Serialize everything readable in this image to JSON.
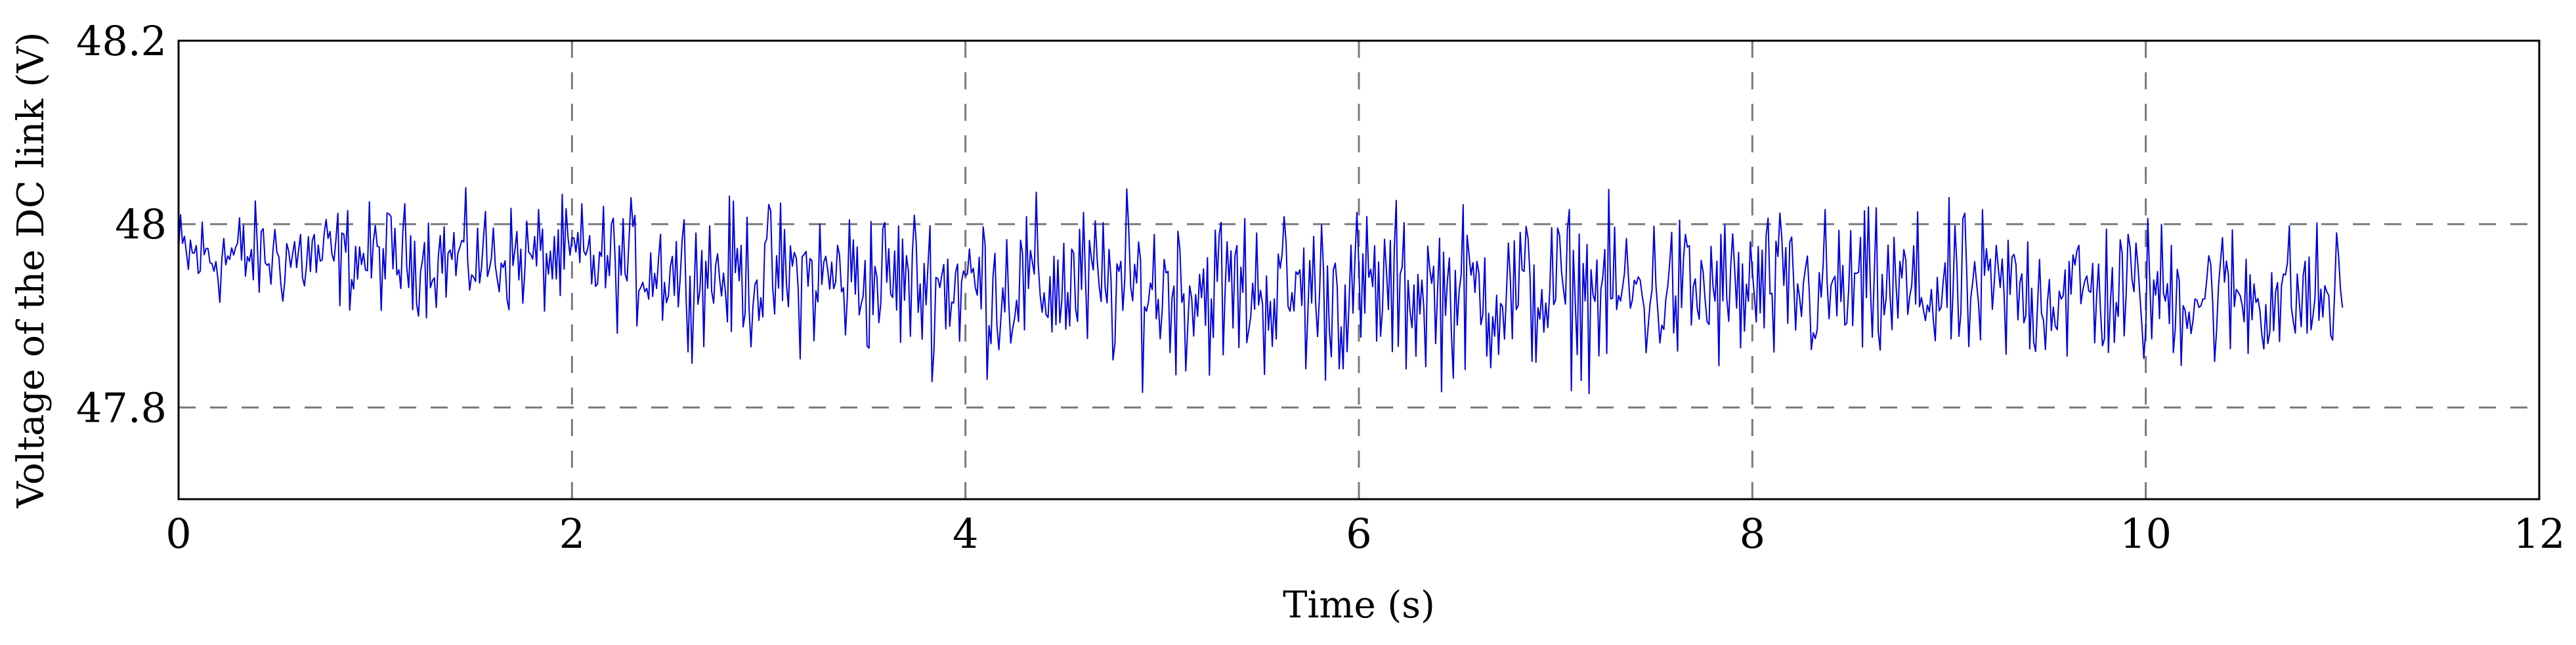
{
  "chart_data": {
    "type": "line",
    "title": "",
    "xlabel": "Time (s)",
    "ylabel": "Voltage of the DC link (V)",
    "xlim": [
      0,
      12
    ],
    "ylim": [
      47.7,
      48.2
    ],
    "xticks": [
      0,
      2,
      4,
      6,
      8,
      10,
      12
    ],
    "xtick_labels": [
      "0",
      "2",
      "4",
      "6",
      "8",
      "10",
      "12"
    ],
    "yticks": [
      47.8,
      48.0,
      48.2
    ],
    "ytick_labels": [
      "47.8",
      "48",
      "48.2"
    ],
    "grid": true,
    "legend": "none",
    "series": [
      {
        "color": "#0000dd",
        "sample_step": 0.01,
        "x_start": 0,
        "x_end": 11.0,
        "envelope": [
          {
            "x": 0,
            "mean": 47.965,
            "half_range": 0.05
          },
          {
            "x": 2.0,
            "mean": 47.962,
            "half_range": 0.055
          },
          {
            "x": 2.8,
            "mean": 47.945,
            "half_range": 0.07
          },
          {
            "x": 4.0,
            "mean": 47.935,
            "half_range": 0.08
          },
          {
            "x": 6.0,
            "mean": 47.925,
            "half_range": 0.085
          },
          {
            "x": 8.0,
            "mean": 47.925,
            "half_range": 0.08
          },
          {
            "x": 10.0,
            "mean": 47.925,
            "half_range": 0.075
          },
          {
            "x": 11.0,
            "mean": 47.92,
            "half_range": 0.07
          }
        ]
      }
    ]
  }
}
